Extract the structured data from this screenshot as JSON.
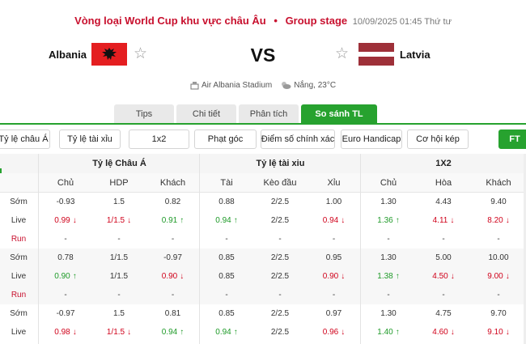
{
  "header": {
    "competition": "Vòng loại World Cup khu vực châu Âu",
    "separator": "•",
    "stage": "Group stage",
    "datetime": "10/09/2025 01:45 Thứ tư"
  },
  "match": {
    "home_team": "Albania",
    "away_team": "Latvia",
    "vs_label": "VS",
    "venue": "Air Albania Stadium",
    "weather": "Nắng, 23°C"
  },
  "tabs": [
    {
      "label": "Tips",
      "active": false
    },
    {
      "label": "Chi tiết",
      "active": false
    },
    {
      "label": "Phân tích",
      "active": false
    },
    {
      "label": "So sánh TL",
      "active": true
    }
  ],
  "filters": [
    "Tỷ lệ châu Á",
    "Tỷ lệ tài xỉu",
    "1x2",
    "Phạt góc",
    "Điểm số chính xác",
    "Euro Handicap",
    "Cơ hội kép",
    "FT"
  ],
  "table": {
    "groups": [
      "Tỷ lệ Châu Á",
      "Tỷ lệ tài xiu",
      "1X2"
    ],
    "columns": [
      "Chủ",
      "HDP",
      "Khách",
      "Tài",
      "Kèo đầu",
      "Xỉu",
      "Chủ",
      "Hòa",
      "Khách"
    ],
    "rows": [
      {
        "label": "Sớm",
        "shade": false,
        "cells": [
          {
            "v": "-0.93",
            "d": ""
          },
          {
            "v": "1.5",
            "d": ""
          },
          {
            "v": "0.82",
            "d": ""
          },
          {
            "v": "0.88",
            "d": ""
          },
          {
            "v": "2/2.5",
            "d": ""
          },
          {
            "v": "1.00",
            "d": ""
          },
          {
            "v": "1.30",
            "d": ""
          },
          {
            "v": "4.43",
            "d": ""
          },
          {
            "v": "9.40",
            "d": ""
          }
        ]
      },
      {
        "label": "Live",
        "shade": false,
        "cells": [
          {
            "v": "0.99",
            "d": "down"
          },
          {
            "v": "1/1.5",
            "d": "down"
          },
          {
            "v": "0.91",
            "d": "up"
          },
          {
            "v": "0.94",
            "d": "up"
          },
          {
            "v": "2/2.5",
            "d": ""
          },
          {
            "v": "0.94",
            "d": "down"
          },
          {
            "v": "1.36",
            "d": "up"
          },
          {
            "v": "4.11",
            "d": "down"
          },
          {
            "v": "8.20",
            "d": "down"
          }
        ]
      },
      {
        "label": "Run",
        "shade": false,
        "run": true,
        "cells": [
          {
            "v": "-",
            "d": ""
          },
          {
            "v": "-",
            "d": ""
          },
          {
            "v": "-",
            "d": ""
          },
          {
            "v": "-",
            "d": ""
          },
          {
            "v": "-",
            "d": ""
          },
          {
            "v": "-",
            "d": ""
          },
          {
            "v": "-",
            "d": ""
          },
          {
            "v": "-",
            "d": ""
          },
          {
            "v": "-",
            "d": ""
          }
        ]
      },
      {
        "label": "Sớm",
        "shade": true,
        "cells": [
          {
            "v": "0.78",
            "d": ""
          },
          {
            "v": "1/1.5",
            "d": ""
          },
          {
            "v": "-0.97",
            "d": ""
          },
          {
            "v": "0.85",
            "d": ""
          },
          {
            "v": "2/2.5",
            "d": ""
          },
          {
            "v": "0.95",
            "d": ""
          },
          {
            "v": "1.30",
            "d": ""
          },
          {
            "v": "5.00",
            "d": ""
          },
          {
            "v": "10.00",
            "d": ""
          }
        ]
      },
      {
        "label": "Live",
        "shade": true,
        "cells": [
          {
            "v": "0.90",
            "d": "up"
          },
          {
            "v": "1/1.5",
            "d": ""
          },
          {
            "v": "0.90",
            "d": "down"
          },
          {
            "v": "0.85",
            "d": ""
          },
          {
            "v": "2/2.5",
            "d": ""
          },
          {
            "v": "0.90",
            "d": "down"
          },
          {
            "v": "1.38",
            "d": "up"
          },
          {
            "v": "4.50",
            "d": "down"
          },
          {
            "v": "9.00",
            "d": "down"
          }
        ]
      },
      {
        "label": "Run",
        "shade": true,
        "run": true,
        "cells": [
          {
            "v": "-",
            "d": ""
          },
          {
            "v": "-",
            "d": ""
          },
          {
            "v": "-",
            "d": ""
          },
          {
            "v": "-",
            "d": ""
          },
          {
            "v": "-",
            "d": ""
          },
          {
            "v": "-",
            "d": ""
          },
          {
            "v": "-",
            "d": ""
          },
          {
            "v": "-",
            "d": ""
          },
          {
            "v": "-",
            "d": ""
          }
        ]
      },
      {
        "label": "Sớm",
        "shade": false,
        "cells": [
          {
            "v": "-0.97",
            "d": ""
          },
          {
            "v": "1.5",
            "d": ""
          },
          {
            "v": "0.81",
            "d": ""
          },
          {
            "v": "0.85",
            "d": ""
          },
          {
            "v": "2/2.5",
            "d": ""
          },
          {
            "v": "0.97",
            "d": ""
          },
          {
            "v": "1.30",
            "d": ""
          },
          {
            "v": "4.75",
            "d": ""
          },
          {
            "v": "9.70",
            "d": ""
          }
        ]
      },
      {
        "label": "Live",
        "shade": false,
        "cells": [
          {
            "v": "0.98",
            "d": "down"
          },
          {
            "v": "1/1.5",
            "d": "down"
          },
          {
            "v": "0.94",
            "d": "up"
          },
          {
            "v": "0.94",
            "d": "up"
          },
          {
            "v": "2/2.5",
            "d": ""
          },
          {
            "v": "0.96",
            "d": "down"
          },
          {
            "v": "1.40",
            "d": "up"
          },
          {
            "v": "4.60",
            "d": "down"
          },
          {
            "v": "9.10",
            "d": "down"
          }
        ]
      }
    ]
  },
  "icons": {
    "star": "star-outline-icon",
    "stadium": "stadium-icon",
    "weather": "partly-cloudy-icon",
    "up": "arrow-up-icon",
    "down": "arrow-down-icon"
  },
  "colors": {
    "accent": "#27a22f",
    "brand_red": "#c8102e",
    "up": "#1e9a28",
    "down": "#d0021b"
  }
}
